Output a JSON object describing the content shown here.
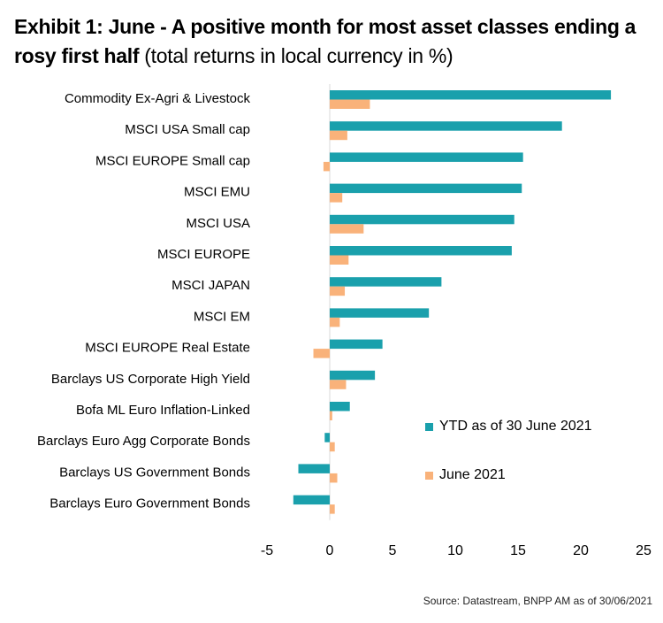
{
  "title": {
    "bold": "Exhibit 1: June - A positive month for most asset classes ending a rosy first half",
    "normal": " (total returns in local currency in %)"
  },
  "source": "Source: Datastream, BNPP AM as of 30/06/2021",
  "colors": {
    "ytd": "#1aa0ac",
    "june": "#f9b27a",
    "axis": "#d9d9d9"
  },
  "chart_data": {
    "type": "bar",
    "orientation": "horizontal",
    "categories": [
      "Commodity Ex-Agri & Livestock",
      "MSCI USA Small cap",
      "MSCI EUROPE Small cap",
      "MSCI EMU",
      "MSCI USA",
      "MSCI EUROPE",
      "MSCI JAPAN",
      "MSCI EM",
      "MSCI EUROPE Real Estate",
      "Barclays US Corporate High Yield",
      "Bofa ML Euro Inflation-Linked",
      "Barclays Euro Agg Corporate Bonds",
      "Barclays US Government Bonds",
      "Barclays Euro Government Bonds"
    ],
    "series": [
      {
        "name": "YTD as of 30 June 2021",
        "color": "#1aa0ac",
        "values": [
          22.4,
          18.5,
          15.4,
          15.3,
          14.7,
          14.5,
          8.9,
          7.9,
          4.2,
          3.6,
          1.6,
          -0.4,
          -2.5,
          -2.9
        ]
      },
      {
        "name": "June 2021",
        "color": "#f9b27a",
        "values": [
          3.2,
          1.4,
          -0.5,
          1.0,
          2.7,
          1.5,
          1.2,
          0.8,
          -1.3,
          1.3,
          0.2,
          0.4,
          0.6,
          0.4
        ]
      }
    ],
    "xlim": [
      -5,
      25
    ],
    "xticks": [
      "-5",
      "0",
      "5",
      "10",
      "15",
      "20",
      "25"
    ],
    "grid": false,
    "legend_position": "lower-right"
  }
}
